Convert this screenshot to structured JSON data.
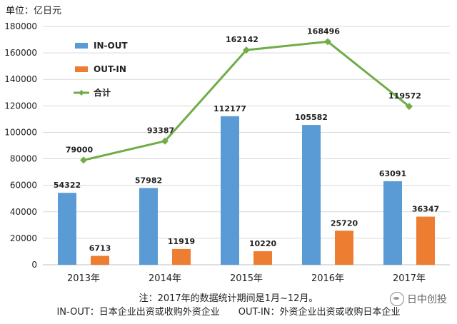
{
  "unit_label": "单位：亿日元",
  "chart_data": {
    "type": "bar",
    "categories": [
      "2013年",
      "2014年",
      "2015年",
      "2016年",
      "2017年"
    ],
    "series": [
      {
        "name": "IN-OUT",
        "type": "bar",
        "color": "#5B9BD5",
        "values": [
          54322,
          57982,
          112177,
          105582,
          63091
        ]
      },
      {
        "name": "OUT-IN",
        "type": "bar",
        "color": "#ED7D31",
        "values": [
          6713,
          11919,
          10220,
          25720,
          36347
        ]
      },
      {
        "name": "合计",
        "type": "line",
        "color": "#70AD47",
        "marker": "diamond",
        "values": [
          79000,
          93387,
          162142,
          168496,
          119572
        ]
      }
    ],
    "ylim": [
      0,
      180000
    ],
    "yticks": [
      0,
      20000,
      40000,
      60000,
      80000,
      100000,
      120000,
      140000,
      160000,
      180000
    ],
    "grid": true,
    "legend_position": "top-left"
  },
  "notes": {
    "line1": "注：2017年的数据统计期间是1月~12月。",
    "line2": "IN-OUT：日本企业出资或收购外资企业　　OUT-IN：外资企业出资或收购日本企业"
  },
  "watermark": {
    "text": "日中创投",
    "icon": "wechat-icon"
  }
}
